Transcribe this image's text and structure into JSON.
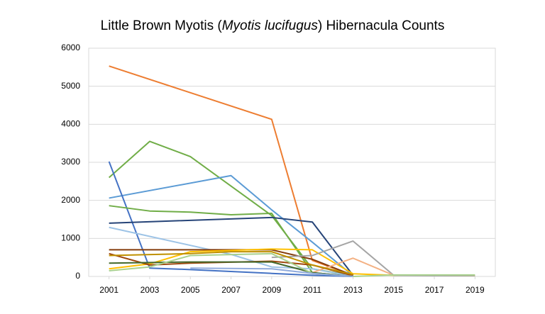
{
  "chart_data": {
    "type": "line",
    "title": [
      {
        "text": "Little Brown Myotis ("
      },
      {
        "text": "Myotis lucifugus",
        "italic": true
      },
      {
        "text": ") Hibernacula Counts"
      }
    ],
    "xlim": [
      2000,
      2020
    ],
    "xticks": [
      2001,
      2003,
      2005,
      2007,
      2009,
      2011,
      2013,
      2015,
      2017,
      2019
    ],
    "ylim": [
      0,
      6000
    ],
    "yticks": [
      0,
      1000,
      2000,
      3000,
      4000,
      5000,
      6000
    ],
    "grid": true,
    "series": [
      {
        "color": "#ed7d31",
        "x": [
          2001,
          2009,
          2011,
          2013
        ],
        "values": [
          5530,
          4130,
          420,
          30
        ]
      },
      {
        "color": "#70ad47",
        "x": [
          2001,
          2003,
          2005,
          2009,
          2011,
          2013
        ],
        "values": [
          2600,
          3550,
          3150,
          1600,
          200,
          20
        ]
      },
      {
        "color": "#5b9bd5",
        "x": [
          2001,
          2007,
          2009,
          2011,
          2013
        ],
        "values": [
          2060,
          2650,
          1750,
          900,
          20
        ]
      },
      {
        "color": "#4472c4",
        "x": [
          2001,
          2003,
          2005,
          2009,
          2011,
          2013
        ],
        "values": [
          3020,
          220,
          180,
          80,
          30,
          0
        ]
      },
      {
        "color": "#70ad47",
        "x": [
          2001,
          2003,
          2005,
          2007,
          2009,
          2011,
          2013
        ],
        "values": [
          1860,
          1720,
          1690,
          1620,
          1660,
          100,
          0
        ]
      },
      {
        "color": "#264478",
        "x": [
          2001,
          2009,
          2011,
          2013
        ],
        "values": [
          1400,
          1550,
          1430,
          30
        ]
      },
      {
        "color": "#9dc3e6",
        "x": [
          2001,
          2007,
          2009,
          2011,
          2013
        ],
        "values": [
          1290,
          580,
          250,
          200,
          0
        ]
      },
      {
        "color": "#843c0c",
        "x": [
          2001,
          2009,
          2011,
          2013
        ],
        "values": [
          700,
          700,
          450,
          30
        ]
      },
      {
        "color": "#ffc000",
        "x": [
          2001,
          2003,
          2005,
          2009,
          2011,
          2013,
          2015,
          2017,
          2019
        ],
        "values": [
          200,
          330,
          650,
          720,
          700,
          70,
          30,
          30,
          20
        ]
      },
      {
        "color": "#a5a5a5",
        "x": [
          2009,
          2011,
          2013,
          2015,
          2017,
          2019
        ],
        "values": [
          500,
          550,
          930,
          30,
          20,
          20
        ]
      },
      {
        "color": "#f4b183",
        "x": [
          2011,
          2013,
          2015
        ],
        "values": [
          100,
          480,
          30
        ]
      },
      {
        "color": "#9e480e",
        "x": [
          2001,
          2003,
          2005,
          2009,
          2011,
          2013
        ],
        "values": [
          600,
          300,
          350,
          400,
          300,
          20
        ]
      },
      {
        "color": "#43682b",
        "x": [
          2001,
          2005,
          2009,
          2011,
          2013
        ],
        "values": [
          350,
          380,
          380,
          100,
          0
        ]
      },
      {
        "color": "#a9d18e",
        "x": [
          2001,
          2003,
          2005,
          2009,
          2011,
          2013,
          2015,
          2017,
          2019
        ],
        "values": [
          150,
          250,
          550,
          600,
          80,
          0,
          40,
          40,
          40
        ]
      },
      {
        "color": "#bf9000",
        "x": [
          2001,
          2005,
          2007,
          2009,
          2011,
          2013
        ],
        "values": [
          550,
          600,
          650,
          650,
          300,
          50
        ]
      },
      {
        "color": "#8faadc",
        "x": [
          2005,
          2009,
          2011,
          2013
        ],
        "values": [
          220,
          200,
          80,
          0
        ]
      }
    ]
  }
}
